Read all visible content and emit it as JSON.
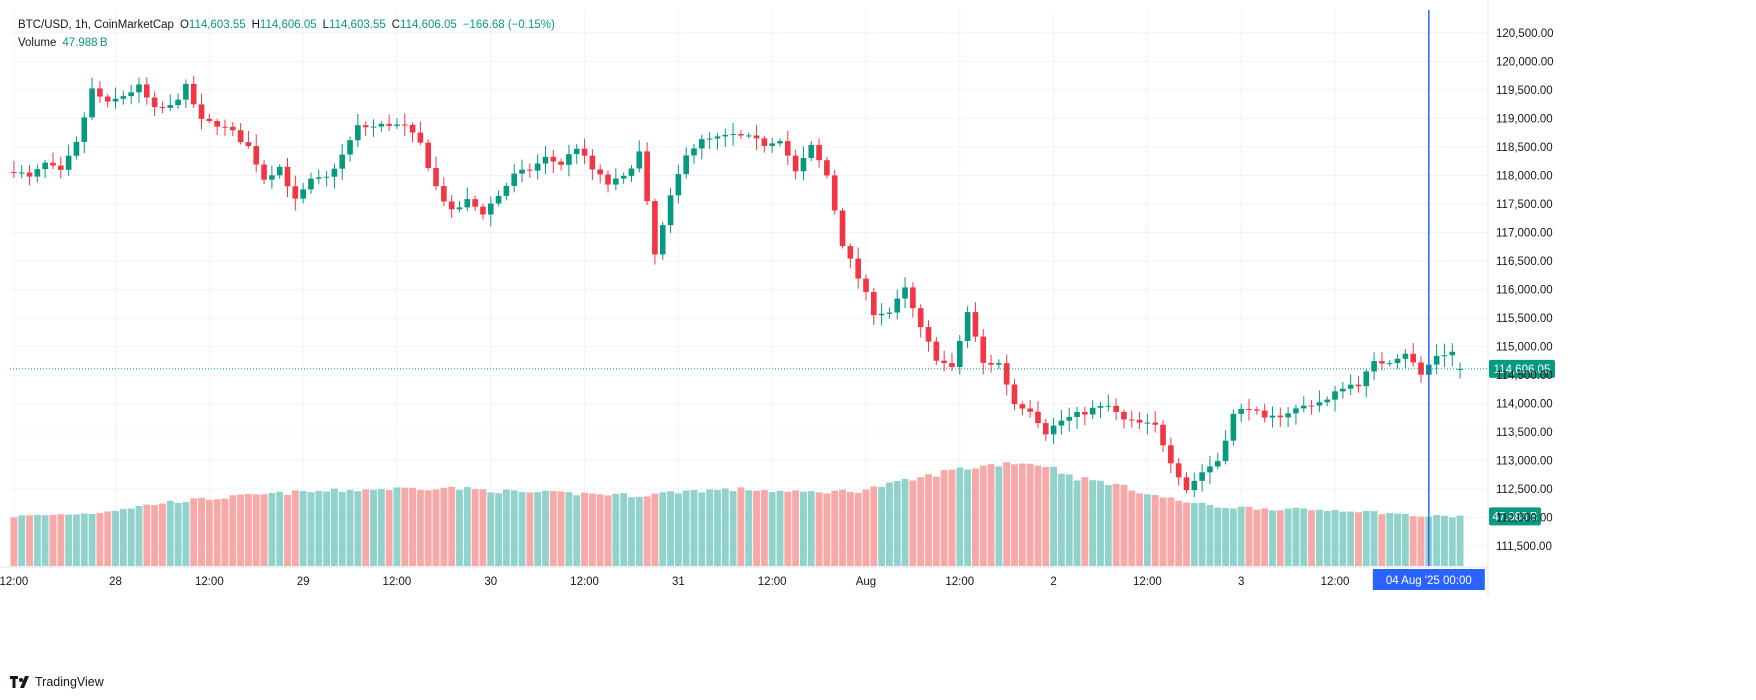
{
  "legend": {
    "symbol_line": "BTC/USD, 1h, CoinMarketCap",
    "open_label": "O",
    "open_value": "114,603.55",
    "high_label": "H",
    "high_value": "114,606.05",
    "low_label": "L",
    "low_value": "114,603.55",
    "close_label": "C",
    "close_value": "114,606.05",
    "change_value": "−166.68 (−0.15%)",
    "volume_label": "Volume",
    "volume_value": "47.988 B"
  },
  "brand": {
    "name": "TradingView"
  },
  "colors": {
    "up": "#089981",
    "down": "#f23645",
    "up_vol": "#92d2cc",
    "down_vol": "#f7a9a7",
    "cursor": "#2962ff",
    "price_tag": "#089981"
  },
  "chart_data": {
    "type": "candlestick",
    "title": "BTC/USD, 1h, CoinMarketCap",
    "price_range": [
      111150,
      120900
    ],
    "y_ticks": [
      111500,
      112000,
      112500,
      113000,
      113500,
      114000,
      114500,
      115000,
      115500,
      116000,
      116500,
      117000,
      117500,
      118000,
      118500,
      119000,
      119500,
      120000,
      120500
    ],
    "y_tick_labels": [
      "111,500.00",
      "112,000.00",
      "112,500.00",
      "113,000.00",
      "113,500.00",
      "114,000.00",
      "114,500.00",
      "115,000.00",
      "115,500.00",
      "116,000.00",
      "116,500.00",
      "117,000.00",
      "117,500.00",
      "118,000.00",
      "118,500.00",
      "119,000.00",
      "119,500.00",
      "120,000.00",
      "120,500.00"
    ],
    "x_ticks": [
      {
        "label": "12:00",
        "index": 0
      },
      {
        "label": "28",
        "index": 13
      },
      {
        "label": "12:00",
        "index": 25
      },
      {
        "label": "29",
        "index": 37
      },
      {
        "label": "12:00",
        "index": 49
      },
      {
        "label": "30",
        "index": 61
      },
      {
        "label": "12:00",
        "index": 73
      },
      {
        "label": "31",
        "index": 85
      },
      {
        "label": "12:00",
        "index": 97
      },
      {
        "label": "Aug",
        "index": 109
      },
      {
        "label": "12:00",
        "index": 121
      },
      {
        "label": "2",
        "index": 133
      },
      {
        "label": "12:00",
        "index": 145
      },
      {
        "label": "3",
        "index": 157
      },
      {
        "label": "12:00",
        "index": 169
      }
    ],
    "last_price_label": "114,606.05",
    "last_price": 114606,
    "volume_label": "47.988 B",
    "cursor_label": "04 Aug '25   00:00",
    "cursor_index": 181,
    "anchors": [
      [
        0,
        118100
      ],
      [
        2,
        117950
      ],
      [
        4,
        118200
      ],
      [
        6,
        118050
      ],
      [
        8,
        118550
      ],
      [
        10,
        119500
      ],
      [
        12,
        119250
      ],
      [
        14,
        119400
      ],
      [
        16,
        119550
      ],
      [
        18,
        119150
      ],
      [
        20,
        119200
      ],
      [
        22,
        119550
      ],
      [
        24,
        118950
      ],
      [
        26,
        118900
      ],
      [
        28,
        118750
      ],
      [
        30,
        118500
      ],
      [
        32,
        117950
      ],
      [
        34,
        118150
      ],
      [
        36,
        117550
      ],
      [
        38,
        117900
      ],
      [
        40,
        117950
      ],
      [
        42,
        118350
      ],
      [
        44,
        118850
      ],
      [
        46,
        118850
      ],
      [
        48,
        118900
      ],
      [
        50,
        118850
      ],
      [
        52,
        118550
      ],
      [
        54,
        117800
      ],
      [
        56,
        117350
      ],
      [
        58,
        117550
      ],
      [
        60,
        117350
      ],
      [
        62,
        117650
      ],
      [
        64,
        118000
      ],
      [
        66,
        118100
      ],
      [
        68,
        118300
      ],
      [
        70,
        118200
      ],
      [
        72,
        118500
      ],
      [
        74,
        118100
      ],
      [
        76,
        117850
      ],
      [
        78,
        117950
      ],
      [
        80,
        118400
      ],
      [
        82,
        116600
      ],
      [
        84,
        117600
      ],
      [
        86,
        118400
      ],
      [
        88,
        118600
      ],
      [
        90,
        118650
      ],
      [
        92,
        118700
      ],
      [
        94,
        118650
      ],
      [
        96,
        118550
      ],
      [
        98,
        118650
      ],
      [
        100,
        118050
      ],
      [
        102,
        118500
      ],
      [
        104,
        118000
      ],
      [
        106,
        116800
      ],
      [
        108,
        116200
      ],
      [
        110,
        115600
      ],
      [
        112,
        115600
      ],
      [
        114,
        116000
      ],
      [
        116,
        115300
      ],
      [
        118,
        114800
      ],
      [
        120,
        114600
      ],
      [
        122,
        115600
      ],
      [
        124,
        114700
      ],
      [
        126,
        114700
      ],
      [
        128,
        114000
      ],
      [
        130,
        113900
      ],
      [
        132,
        113500
      ],
      [
        134,
        113700
      ],
      [
        136,
        113800
      ],
      [
        138,
        113900
      ],
      [
        140,
        113950
      ],
      [
        142,
        113700
      ],
      [
        144,
        113650
      ],
      [
        146,
        113600
      ],
      [
        148,
        113000
      ],
      [
        150,
        112500
      ],
      [
        152,
        112800
      ],
      [
        154,
        113000
      ],
      [
        156,
        113800
      ],
      [
        158,
        113950
      ],
      [
        160,
        113700
      ],
      [
        162,
        113800
      ],
      [
        164,
        113900
      ],
      [
        166,
        114000
      ],
      [
        168,
        114050
      ],
      [
        170,
        114300
      ],
      [
        172,
        114350
      ],
      [
        174,
        114700
      ],
      [
        176,
        114750
      ],
      [
        178,
        114900
      ],
      [
        180,
        114500
      ],
      [
        182,
        114850
      ],
      [
        184,
        114900
      ],
      [
        185,
        114606
      ]
    ],
    "vol_anchors": [
      [
        0,
        0.31
      ],
      [
        10,
        0.33
      ],
      [
        20,
        0.4
      ],
      [
        30,
        0.44
      ],
      [
        36,
        0.46
      ],
      [
        46,
        0.48
      ],
      [
        55,
        0.49
      ],
      [
        65,
        0.46
      ],
      [
        75,
        0.45
      ],
      [
        80,
        0.44
      ],
      [
        86,
        0.47
      ],
      [
        94,
        0.48
      ],
      [
        100,
        0.46
      ],
      [
        108,
        0.47
      ],
      [
        116,
        0.55
      ],
      [
        120,
        0.6
      ],
      [
        128,
        0.65
      ],
      [
        132,
        0.63
      ],
      [
        136,
        0.55
      ],
      [
        140,
        0.52
      ],
      [
        146,
        0.44
      ],
      [
        150,
        0.4
      ],
      [
        154,
        0.37
      ],
      [
        160,
        0.36
      ],
      [
        166,
        0.35
      ],
      [
        170,
        0.35
      ],
      [
        176,
        0.33
      ],
      [
        180,
        0.31
      ],
      [
        185,
        0.31
      ]
    ]
  }
}
